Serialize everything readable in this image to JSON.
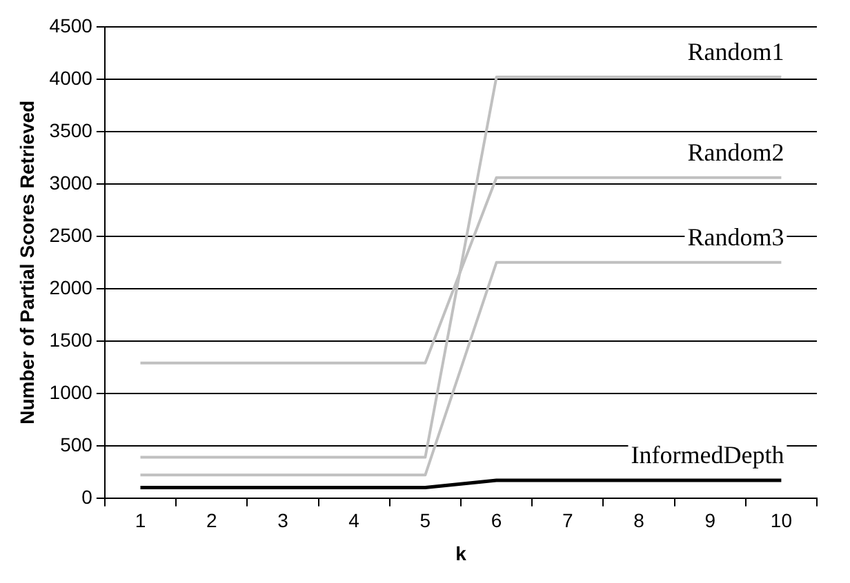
{
  "chart_data": {
    "type": "line",
    "xlabel": "k",
    "ylabel": "Number of Partial Scores Retrieved",
    "categories": [
      "1",
      "2",
      "3",
      "4",
      "5",
      "6",
      "7",
      "8",
      "9",
      "10"
    ],
    "series": [
      {
        "name": "Random1",
        "color": "#c0c0c0",
        "values": [
          390,
          390,
          390,
          390,
          390,
          4020,
          4020,
          4020,
          4020,
          4020
        ]
      },
      {
        "name": "Random2",
        "color": "#c0c0c0",
        "values": [
          1290,
          1290,
          1290,
          1290,
          1290,
          3060,
          3060,
          3060,
          3060,
          3060
        ]
      },
      {
        "name": "Random3",
        "color": "#c0c0c0",
        "values": [
          220,
          220,
          220,
          220,
          220,
          2250,
          2250,
          2250,
          2250,
          2250
        ]
      },
      {
        "name": "InformedDepth",
        "color": "#000000",
        "values": [
          100,
          100,
          100,
          100,
          100,
          170,
          170,
          170,
          170,
          170
        ]
      }
    ],
    "ylim": [
      0,
      4500
    ],
    "yticks": [
      0,
      500,
      1000,
      1500,
      2000,
      2500,
      3000,
      3500,
      4000,
      4500
    ],
    "grid": "y",
    "legend": false,
    "marker": "none",
    "line_style": "solid"
  }
}
